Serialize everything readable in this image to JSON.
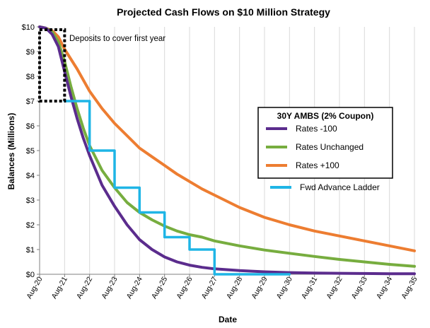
{
  "chart_data": {
    "type": "line",
    "title": "Projected Cash Flows on $10 Million Strategy",
    "xlabel": "Date",
    "ylabel": "Balances (Millions)",
    "x_ticks": [
      "Aug-20",
      "Aug-21",
      "Aug-22",
      "Aug-23",
      "Aug-24",
      "Aug-25",
      "Aug-26",
      "Aug-27",
      "Aug-28",
      "Aug-29",
      "Aug-30",
      "Aug-31",
      "Aug-32",
      "Aug-33",
      "Aug-34",
      "Aug-35"
    ],
    "y_ticks": [
      "$0",
      "$1",
      "$2",
      "$3",
      "$4",
      "$5",
      "$6",
      "$7",
      "$8",
      "$9",
      "$10"
    ],
    "ylim": [
      0,
      10
    ],
    "x_range_years": [
      0,
      15
    ],
    "grid": "vertical",
    "legend": {
      "title": "30Y AMBS (2% Coupon)",
      "placement": "center-right"
    },
    "annotation": "Deposits to cover first year",
    "colors": {
      "rates_down": "#5b2c8d",
      "rates_unchanged": "#77ad3f",
      "rates_up": "#ed7d31",
      "ladder": "#1fb5e6",
      "annotation_box": "#000000"
    },
    "series": [
      {
        "name": "Rates -100",
        "x": [
          0,
          0.25,
          0.5,
          0.75,
          1,
          1.25,
          1.5,
          1.75,
          2,
          2.5,
          3,
          3.5,
          4,
          4.5,
          5,
          5.5,
          6,
          6.5,
          7,
          8,
          9,
          10,
          11,
          12,
          13,
          14,
          15
        ],
        "values": [
          10,
          9.95,
          9.7,
          9.2,
          8.2,
          7.2,
          6.3,
          5.5,
          4.8,
          3.6,
          2.75,
          2.0,
          1.4,
          1.0,
          0.7,
          0.5,
          0.37,
          0.28,
          0.22,
          0.15,
          0.1,
          0.07,
          0.05,
          0.04,
          0.03,
          0.02,
          0.02
        ]
      },
      {
        "name": "Rates Unchanged",
        "x": [
          0,
          0.25,
          0.5,
          0.75,
          1,
          1.25,
          1.5,
          1.75,
          2,
          2.5,
          3,
          3.5,
          4,
          4.5,
          5,
          5.5,
          6,
          6.5,
          7,
          8,
          9,
          10,
          11,
          12,
          13,
          14,
          15
        ],
        "values": [
          10,
          9.95,
          9.8,
          9.4,
          8.6,
          7.6,
          6.7,
          5.9,
          5.2,
          4.2,
          3.5,
          2.9,
          2.5,
          2.2,
          1.95,
          1.75,
          1.6,
          1.5,
          1.35,
          1.15,
          0.98,
          0.85,
          0.72,
          0.6,
          0.5,
          0.4,
          0.32
        ]
      },
      {
        "name": "Rates +100",
        "x": [
          0,
          0.25,
          0.5,
          0.75,
          1,
          1.5,
          2,
          2.5,
          3,
          3.5,
          4,
          4.5,
          5,
          5.5,
          6,
          6.5,
          7,
          8,
          9,
          10,
          11,
          12,
          13,
          14,
          15
        ],
        "values": [
          10,
          9.95,
          9.85,
          9.6,
          9.1,
          8.3,
          7.4,
          6.7,
          6.1,
          5.6,
          5.1,
          4.75,
          4.4,
          4.05,
          3.75,
          3.45,
          3.2,
          2.7,
          2.3,
          2.0,
          1.75,
          1.55,
          1.35,
          1.15,
          0.95
        ]
      },
      {
        "name": "Fwd Advance Ladder",
        "x": [
          1,
          2,
          2,
          3,
          3,
          4,
          4,
          5,
          5,
          6,
          6,
          7,
          7,
          10
        ],
        "values": [
          7,
          7,
          5,
          5,
          3.5,
          3.5,
          2.5,
          2.5,
          1.5,
          1.5,
          1,
          1,
          0,
          0
        ]
      }
    ]
  }
}
